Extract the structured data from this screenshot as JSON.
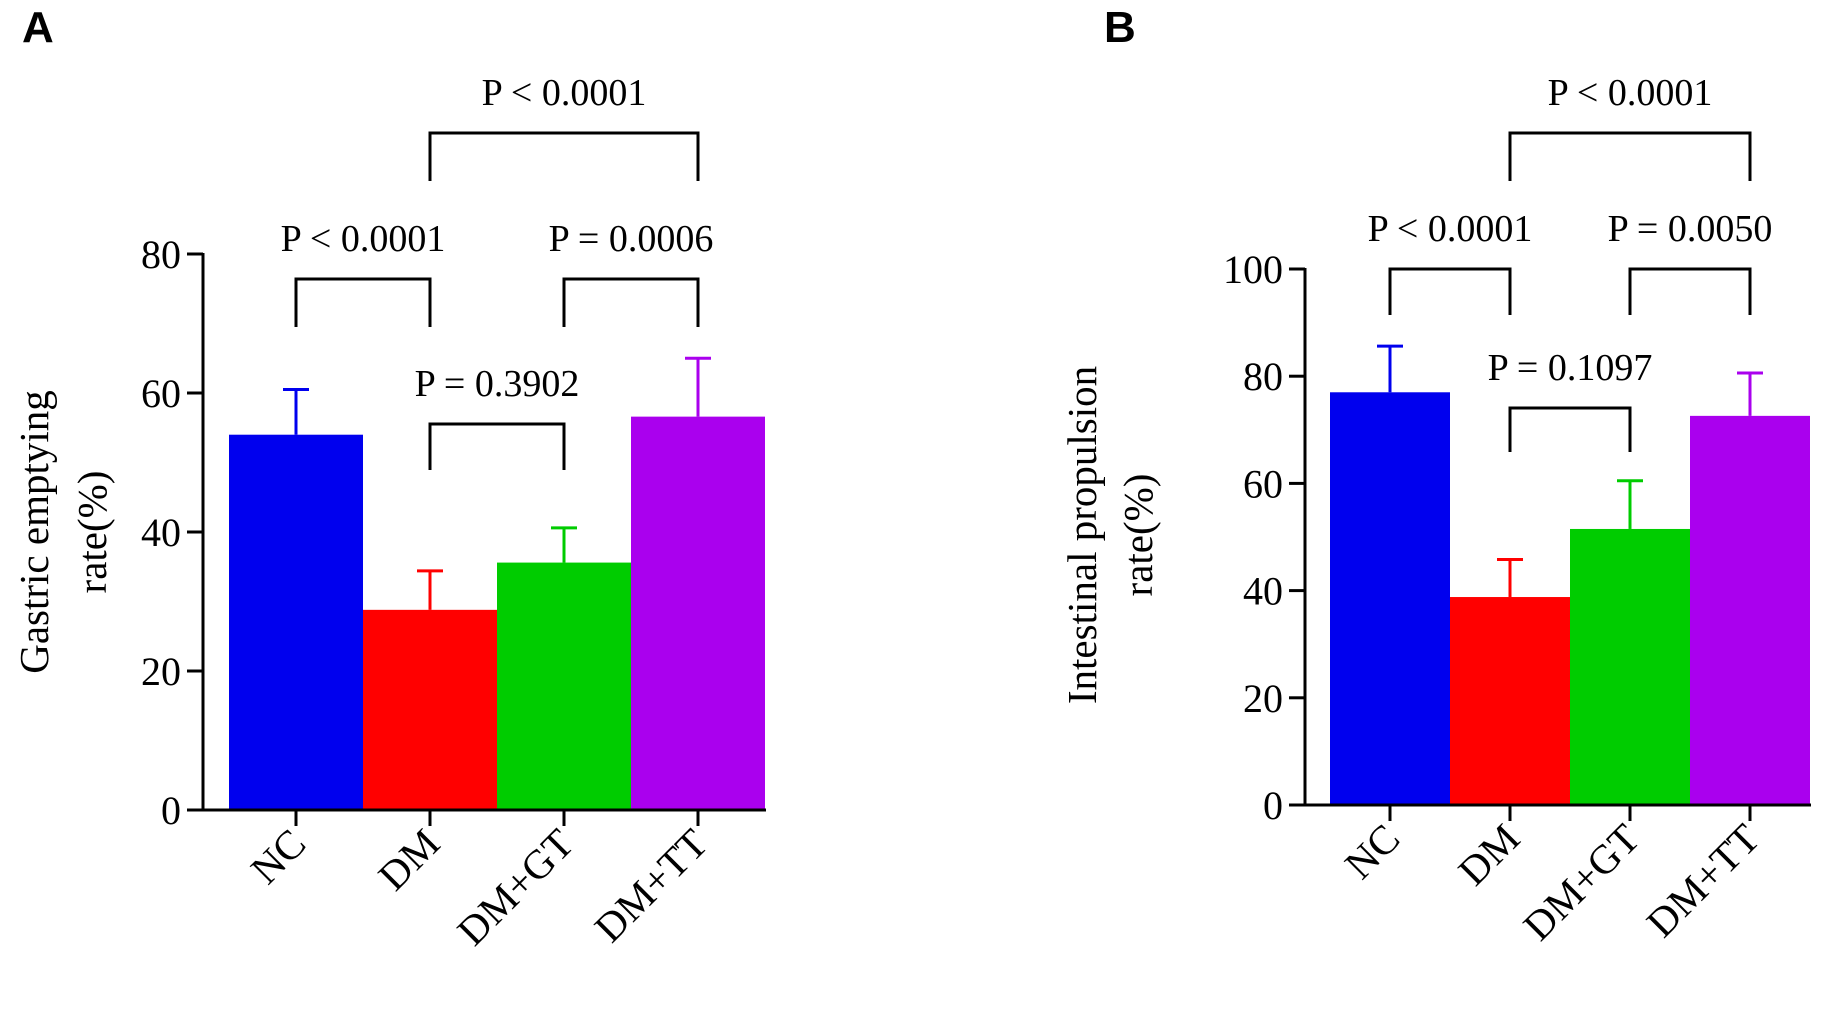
{
  "chart_data": [
    {
      "type": "bar",
      "panel": "A",
      "categories": [
        "NC",
        "DM",
        "DM+GT",
        "DM+TT"
      ],
      "values": [
        54,
        28.8,
        35.6,
        56.6
      ],
      "errors": [
        6.5,
        5.6,
        5.0,
        8.4
      ],
      "colors": [
        "#0000ee",
        "#ff0000",
        "#00cc00",
        "#aa00ee"
      ],
      "ylabel_line1": "Gastric emptying",
      "ylabel_line2": "rate(%)",
      "ylim": [
        0,
        80
      ],
      "yticks": [
        0,
        20,
        40,
        60,
        80
      ],
      "comparisons": [
        {
          "from": 0,
          "to": 1,
          "label": "P < 0.0001",
          "level": 1
        },
        {
          "from": 2,
          "to": 3,
          "label": "P = 0.0006",
          "level": 1
        },
        {
          "from": 1,
          "to": 2,
          "label": "P = 0.3902",
          "level": 0
        },
        {
          "from": 1,
          "to": 3,
          "label": "P < 0.0001",
          "level": 2
        }
      ]
    },
    {
      "type": "bar",
      "panel": "B",
      "categories": [
        "NC",
        "DM",
        "DM+GT",
        "DM+TT"
      ],
      "values": [
        77,
        38.8,
        51.5,
        72.6
      ],
      "errors": [
        8.6,
        7.0,
        9.0,
        8.0
      ],
      "colors": [
        "#0000ee",
        "#ff0000",
        "#00cc00",
        "#aa00ee"
      ],
      "ylabel_line1": "Intestinal propulsion",
      "ylabel_line2": "rate(%)",
      "ylim": [
        0,
        100
      ],
      "yticks": [
        0,
        20,
        40,
        60,
        80,
        100
      ],
      "comparisons": [
        {
          "from": 0,
          "to": 1,
          "label": "P < 0.0001",
          "level": 1
        },
        {
          "from": 2,
          "to": 3,
          "label": "P = 0.0050",
          "level": 1
        },
        {
          "from": 1,
          "to": 2,
          "label": "P = 0.1097",
          "level": 0
        },
        {
          "from": 1,
          "to": 3,
          "label": "P < 0.0001",
          "level": 2
        }
      ]
    }
  ]
}
